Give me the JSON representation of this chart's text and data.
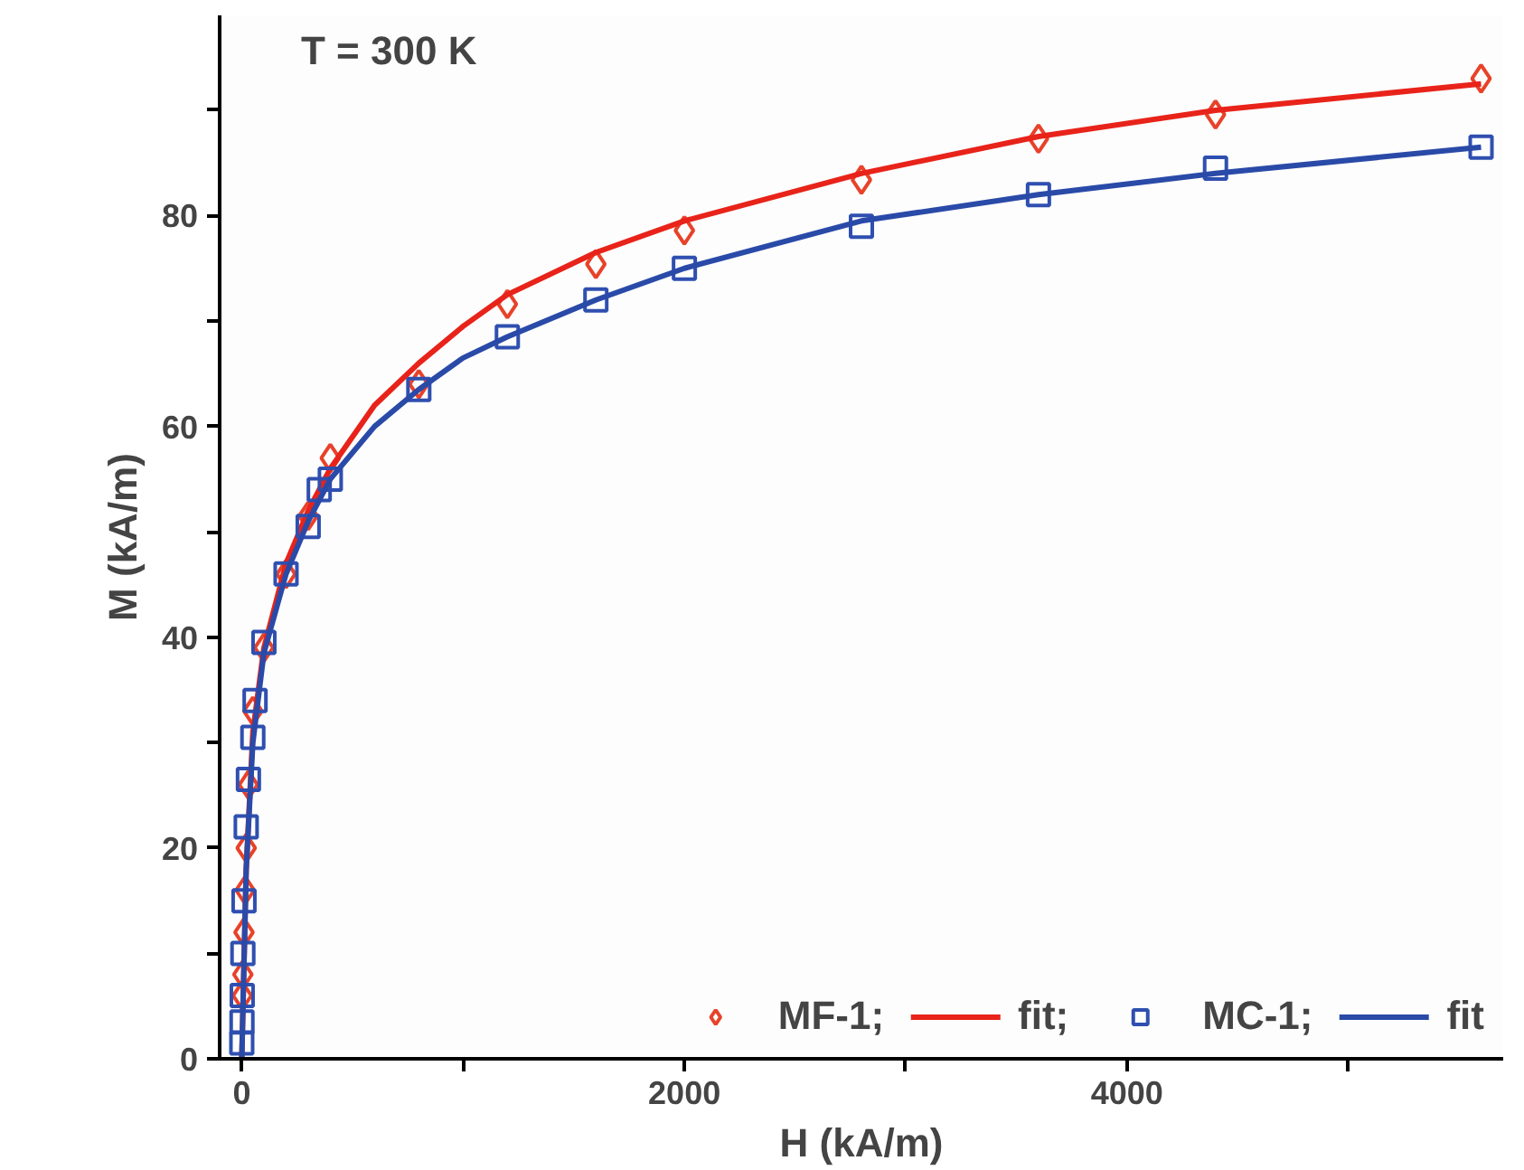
{
  "chart_data": {
    "type": "scatter",
    "xlabel": "H (kA/m)",
    "ylabel": "M (kA/m)",
    "annotations": [
      "T = 300 K"
    ],
    "xlim": [
      -100,
      5700
    ],
    "ylim": [
      0,
      99
    ],
    "xticks": [
      0,
      {
        "value": 1000,
        "label": null
      },
      2000,
      {
        "value": 3000,
        "label": null
      },
      4000,
      {
        "value": 5000,
        "label": null
      }
    ],
    "yticks": [
      0,
      {
        "value": 10,
        "label": null
      },
      20,
      {
        "value": 30,
        "label": null
      },
      40,
      {
        "value": 50,
        "label": null
      },
      60,
      {
        "value": 70,
        "label": null
      },
      80,
      {
        "value": 90,
        "label": null
      }
    ],
    "grid": false,
    "legend": "bottom right",
    "series": [
      {
        "name": "MF-1;",
        "marker": "diamond",
        "color": "#e8422a",
        "x": [
          2,
          5,
          10,
          15,
          20,
          30,
          50,
          100,
          200,
          300,
          400,
          800,
          1200,
          1600,
          2000,
          2800,
          3600,
          4400,
          5600
        ],
        "values": [
          6,
          8,
          12,
          16,
          20,
          26,
          33,
          39,
          46,
          51.5,
          57,
          64,
          71.6,
          75.4,
          78.6,
          83.4,
          87.3,
          89.6,
          93
        ]
      },
      {
        "name": "fit;",
        "type": "line",
        "color": "#e8231a",
        "x": [
          0,
          20,
          50,
          100,
          200,
          300,
          400,
          600,
          800,
          1000,
          1200,
          1600,
          2000,
          2800,
          3600,
          4400,
          5600
        ],
        "values": [
          0,
          18,
          31,
          39,
          47,
          52,
          56,
          62,
          66,
          69.5,
          72.5,
          76.5,
          79.5,
          84,
          87.5,
          90,
          92.5
        ]
      },
      {
        "name": "MC-1;",
        "marker": "square",
        "color": "#2f4fb0",
        "x": [
          0,
          1,
          2,
          5,
          10,
          20,
          30,
          50,
          60,
          100,
          200,
          300,
          350,
          400,
          800,
          1200,
          1600,
          2000,
          2800,
          3600,
          4400,
          5600
        ],
        "values": [
          1.5,
          3.5,
          6,
          10,
          15,
          22,
          26.5,
          30.5,
          34,
          39.5,
          46,
          50.5,
          54,
          55,
          63.5,
          68.5,
          72,
          75,
          79,
          82,
          84.5,
          86.5
        ]
      },
      {
        "name": "fit",
        "type": "line",
        "color": "#2a4aa8",
        "x": [
          0,
          20,
          50,
          100,
          200,
          300,
          400,
          600,
          800,
          1000,
          1200,
          1600,
          2000,
          2800,
          3600,
          4400,
          5600
        ],
        "values": [
          0,
          18,
          30,
          38.5,
          46,
          51,
          55,
          60,
          63.5,
          66.5,
          68.5,
          72,
          75,
          79.5,
          82,
          84,
          86.5
        ]
      }
    ]
  }
}
